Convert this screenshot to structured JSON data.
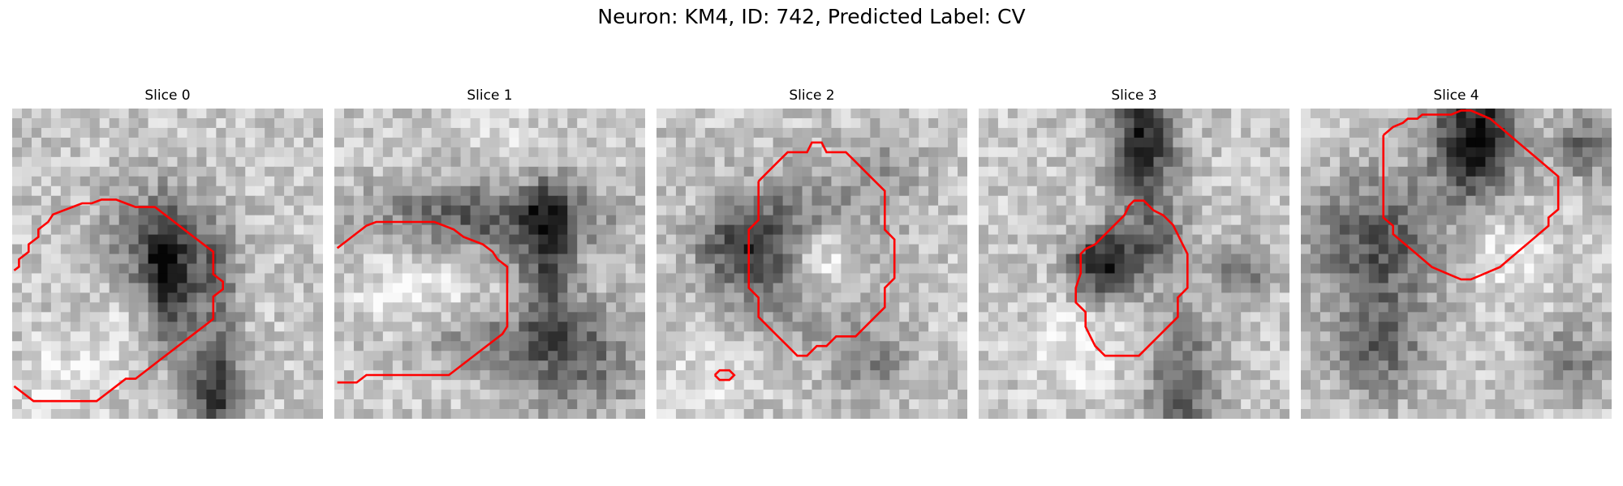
{
  "figure": {
    "title": "Neuron: KM4, ID: 742, Predicted Label: CV",
    "contour_color": "#ff0000",
    "colormap": "gray",
    "panels": [
      {
        "title": "Slice 0"
      },
      {
        "title": "Slice 1"
      },
      {
        "title": "Slice 2"
      },
      {
        "title": "Slice 3"
      },
      {
        "title": "Slice 4"
      }
    ]
  }
}
